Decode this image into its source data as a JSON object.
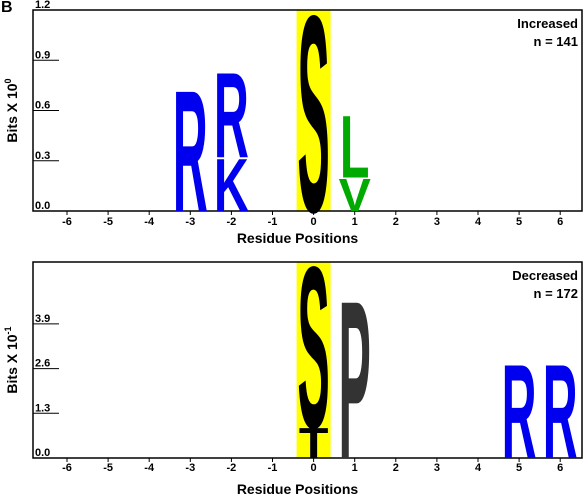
{
  "panel_letter": "B",
  "chart_data": [
    {
      "type": "sequence-logo",
      "ylabel": "Bits X 10",
      "ylabel_exp": "0",
      "xlabel": "Residue Positions",
      "yticks": [
        "0.0",
        "0.3",
        "0.6",
        "0.9",
        "1.2"
      ],
      "ytick_values": [
        0.0,
        0.3,
        0.6,
        0.9,
        1.2
      ],
      "ylim": [
        0,
        1.2
      ],
      "positions": [
        -6,
        -5,
        -4,
        -3,
        -2,
        -1,
        0,
        1,
        2,
        3,
        4,
        5,
        6
      ],
      "position_labels": [
        "-6",
        "-5",
        "-4",
        "-3",
        "-2",
        "-1",
        "0",
        "1",
        "2",
        "3",
        "4",
        "5",
        "6"
      ],
      "annotation": [
        "Increased",
        "n = 141"
      ],
      "highlight_position": 0,
      "highlight_color": "#ffff00",
      "stacks": [
        {
          "position": -3,
          "letters": [
            {
              "letter": "R",
              "bits": 0.74,
              "color": "#0000ee"
            }
          ]
        },
        {
          "position": -2,
          "letters": [
            {
              "letter": "K",
              "bits": 0.32,
              "color": "#0000ee"
            },
            {
              "letter": "R",
              "bits": 0.52,
              "color": "#0000ee"
            }
          ]
        },
        {
          "position": 0,
          "letters": [
            {
              "letter": "S",
              "bits": 1.2,
              "color": "#000000"
            }
          ]
        },
        {
          "position": 1,
          "letters": [
            {
              "letter": "V",
              "bits": 0.2,
              "color": "#00aa00"
            },
            {
              "letter": "L",
              "bits": 0.38,
              "color": "#00aa00"
            }
          ]
        }
      ]
    },
    {
      "type": "sequence-logo",
      "ylabel": "Bits X 10",
      "ylabel_exp": "-1",
      "xlabel": "Residue Positions",
      "yticks": [
        "0.0",
        "1.3",
        "2.6",
        "3.9"
      ],
      "ytick_values": [
        0.0,
        1.3,
        2.6,
        3.9
      ],
      "ylim": [
        0,
        5.7
      ],
      "positions": [
        -6,
        -5,
        -4,
        -3,
        -2,
        -1,
        0,
        1,
        2,
        3,
        4,
        5,
        6
      ],
      "position_labels": [
        "-6",
        "-5",
        "-4",
        "-3",
        "-2",
        "-1",
        "0",
        "1",
        "2",
        "3",
        "4",
        "5",
        "6"
      ],
      "annotation": [
        "Decreased",
        "n = 172"
      ],
      "highlight_position": 0,
      "highlight_color": "#ffff00",
      "stacks": [
        {
          "position": 0,
          "letters": [
            {
              "letter": "T",
              "bits": 0.9,
              "color": "#000000"
            },
            {
              "letter": "S",
              "bits": 4.8,
              "color": "#000000"
            }
          ]
        },
        {
          "position": 1,
          "letters": [
            {
              "letter": "P",
              "bits": 4.7,
              "color": "#333333"
            }
          ]
        },
        {
          "position": 5,
          "letters": [
            {
              "letter": "R",
              "bits": 2.8,
              "color": "#0000ee"
            }
          ]
        },
        {
          "position": 6,
          "letters": [
            {
              "letter": "R",
              "bits": 2.8,
              "color": "#0000ee"
            }
          ]
        }
      ]
    }
  ]
}
